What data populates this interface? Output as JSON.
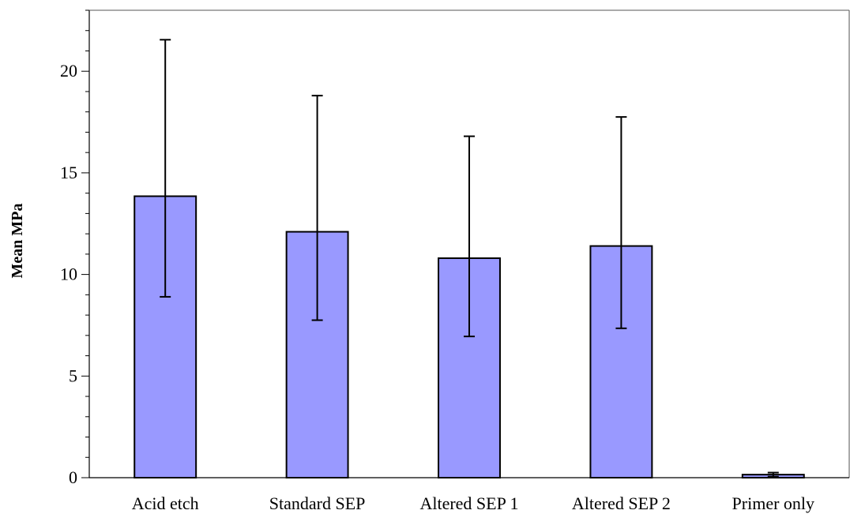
{
  "chart_data": {
    "type": "bar",
    "title": "",
    "xlabel": "",
    "ylabel": "Mean MPa",
    "ylim": [
      0,
      23
    ],
    "yticks": [
      0,
      5,
      10,
      15,
      20
    ],
    "ytick_labels": [
      "0",
      "5",
      "10",
      "15",
      "20"
    ],
    "categories": [
      "Acid etch",
      "Standard SEP",
      "Altered SEP 1",
      "Altered SEP 2",
      "Primer only"
    ],
    "values": [
      13.85,
      12.1,
      10.8,
      11.4,
      0.15
    ],
    "error_low": [
      8.9,
      7.75,
      6.95,
      7.35,
      0.05
    ],
    "error_high": [
      21.55,
      18.8,
      16.8,
      17.75,
      0.25
    ],
    "grid": false,
    "legend": "none",
    "bar_color": "#9999ff",
    "bar_border_color": "#000000"
  }
}
